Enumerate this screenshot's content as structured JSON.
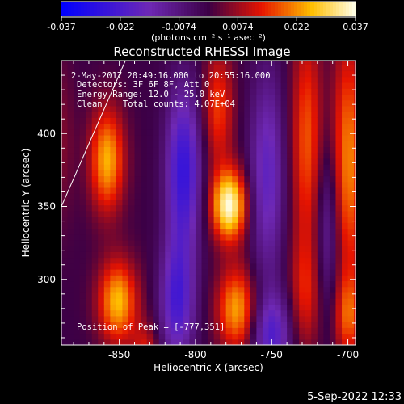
{
  "chart_data": {
    "type": "heatmap",
    "title": "Reconstructed RHESSI Image",
    "xlabel": "Heliocentric X (arcsec)",
    "ylabel": "Heliocentric Y (arcsec)",
    "xlim": [
      -888,
      -695
    ],
    "ylim": [
      255,
      450
    ],
    "x_ticks": [
      -850,
      -800,
      -750,
      -700
    ],
    "y_ticks": [
      300,
      350,
      400
    ],
    "colorbar": {
      "min": -0.037,
      "max": 0.037,
      "ticks": [
        "-0.037",
        "-0.022",
        "-0.0074",
        "0.0074",
        "0.022",
        "0.037"
      ],
      "unit_label": "(photons cm⁻² s⁻¹ asec⁻²)"
    },
    "info_lines": [
      "2-May-2017 20:49:16.000 to 20:55:16.000",
      "Detectors: 3F 6F 8F, Att 0",
      "Energy Range: 12.0 - 25.0 keV",
      "Clean    Total counts: 4.07E+04"
    ],
    "peak_text": "Position of Peak = [-777,351]",
    "peak_position": [
      -777,
      351
    ],
    "limb_line": [
      [
        -888,
        350
      ],
      [
        -846,
        450
      ]
    ],
    "sources": [
      {
        "x": -888,
        "y": 395,
        "sx": 6,
        "sy": 40,
        "v": 0.005
      },
      {
        "x": -858,
        "y": 382,
        "sx": 8,
        "sy": 25,
        "v": 0.025
      },
      {
        "x": -851,
        "y": 285,
        "sx": 9,
        "sy": 20,
        "v": 0.026
      },
      {
        "x": -833,
        "y": 250,
        "sx": 6,
        "sy": 14,
        "v": 0.012
      },
      {
        "x": -808,
        "y": 375,
        "sx": 8,
        "sy": 40,
        "v": -0.026
      },
      {
        "x": -812,
        "y": 285,
        "sx": 8,
        "sy": 30,
        "v": -0.022
      },
      {
        "x": -785,
        "y": 418,
        "sx": 7,
        "sy": 28,
        "v": 0.016
      },
      {
        "x": -778,
        "y": 351,
        "sx": 8,
        "sy": 17,
        "v": 0.036
      },
      {
        "x": -773,
        "y": 280,
        "sx": 9,
        "sy": 20,
        "v": 0.024
      },
      {
        "x": -753,
        "y": 372,
        "sx": 8,
        "sy": 50,
        "v": -0.018
      },
      {
        "x": -750,
        "y": 262,
        "sx": 9,
        "sy": 20,
        "v": -0.02
      },
      {
        "x": -727,
        "y": 395,
        "sx": 7,
        "sy": 55,
        "v": 0.018
      },
      {
        "x": -728,
        "y": 290,
        "sx": 7,
        "sy": 28,
        "v": 0.012
      },
      {
        "x": -713,
        "y": 335,
        "sx": 6,
        "sy": 40,
        "v": -0.012
      },
      {
        "x": -700,
        "y": 380,
        "sx": 7,
        "sy": 60,
        "v": 0.022
      },
      {
        "x": -700,
        "y": 275,
        "sx": 6,
        "sy": 20,
        "v": 0.016
      }
    ]
  },
  "footer": {
    "date": "5-Sep-2022 12:33"
  },
  "colors": {
    "background": "#000000",
    "text": "#ffffff"
  }
}
